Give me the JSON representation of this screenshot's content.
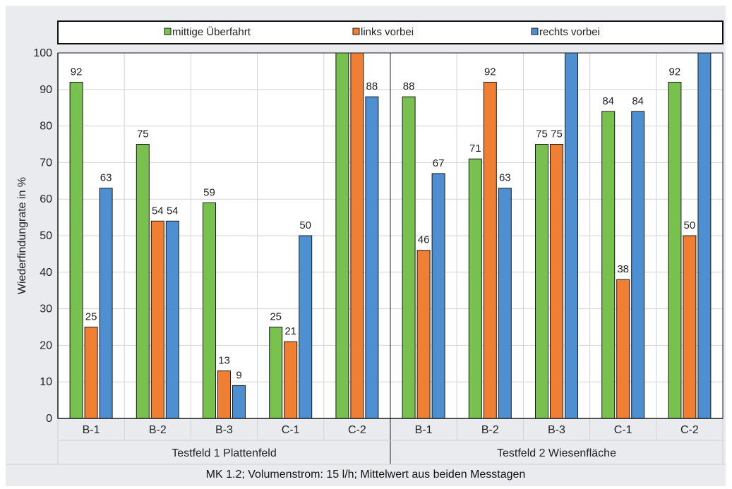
{
  "chart_data": {
    "type": "bar",
    "ylabel": "Wiederfindungrate in %",
    "ylim": [
      0,
      100
    ],
    "yticks": [
      0,
      10,
      20,
      30,
      40,
      50,
      60,
      70,
      80,
      90,
      100
    ],
    "grid": true,
    "legend_position": "top",
    "groups": [
      {
        "name": "Testfeld 1 Plattenfeld",
        "categories": [
          "B-1",
          "B-2",
          "B-3",
          "C-1",
          "C-2"
        ]
      },
      {
        "name": "Testfeld 2 Wiesenfläche",
        "categories": [
          "B-1",
          "B-2",
          "B-3",
          "C-1",
          "C-2"
        ]
      }
    ],
    "series": [
      {
        "name": "mittige Überfahrt",
        "color": "#78c14f",
        "values": [
          92,
          75,
          59,
          25,
          100,
          88,
          71,
          75,
          84,
          92
        ],
        "labels": [
          "92",
          "75",
          "59",
          "25",
          "",
          "88",
          "71",
          "75",
          "84",
          "92"
        ]
      },
      {
        "name": "links vorbei",
        "color": "#f07f33",
        "values": [
          25,
          54,
          13,
          21,
          100,
          46,
          92,
          75,
          38,
          50
        ],
        "labels": [
          "25",
          "54",
          "13",
          "21",
          "",
          "46",
          "92",
          "75",
          "38",
          "50"
        ]
      },
      {
        "name": "rechts vorbei",
        "color": "#4d8fd0",
        "values": [
          63,
          54,
          9,
          50,
          88,
          67,
          63,
          100,
          84,
          100
        ],
        "labels": [
          "63",
          "54",
          "9",
          "50",
          "88",
          "67",
          "63",
          "",
          "84",
          ""
        ]
      }
    ],
    "caption": "MK 1.2; Volumenstrom: 15 l/h; Mittelwert aus beiden Messtagen"
  }
}
